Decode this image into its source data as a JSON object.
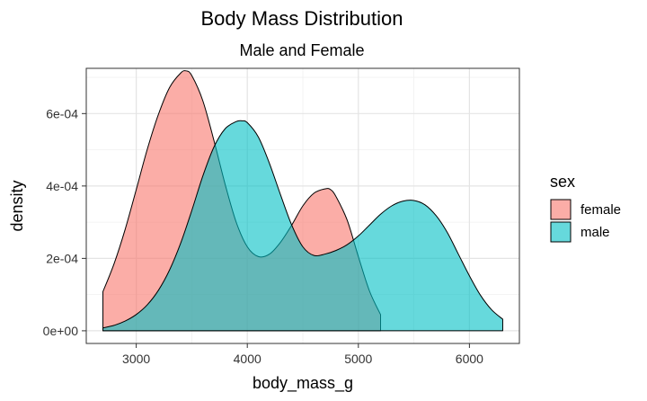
{
  "chart_data": {
    "type": "area",
    "title": "Body Mass Distribution",
    "subtitle": "Male and Female",
    "xlabel": "body_mass_g",
    "ylabel": "density",
    "xlim": [
      2550,
      6450
    ],
    "ylim": [
      -3.5e-05,
      0.000725
    ],
    "x_ticks": [
      3000,
      4000,
      5000,
      6000
    ],
    "x_tick_labels": [
      "3000",
      "4000",
      "5000",
      "6000"
    ],
    "y_ticks": [
      0,
      0.0002,
      0.0004,
      0.0006
    ],
    "y_tick_labels": [
      "0e+00",
      "2e-04",
      "4e-04",
      "6e-04"
    ],
    "grid": true,
    "legend": {
      "title": "sex",
      "position": "right",
      "items": [
        {
          "label": "female",
          "color": "#F8766D"
        },
        {
          "label": "male",
          "color": "#00BFC4"
        }
      ]
    },
    "series": [
      {
        "name": "female",
        "color": "#F8766D",
        "x": [
          2700,
          2800,
          2900,
          3000,
          3100,
          3200,
          3300,
          3400,
          3450,
          3500,
          3600,
          3700,
          3800,
          3900,
          4000,
          4100,
          4200,
          4300,
          4400,
          4500,
          4600,
          4700,
          4750,
          4800,
          4900,
          5000,
          5100,
          5200
        ],
        "y": [
          0.000108,
          0.000185,
          0.00028,
          0.00039,
          0.000502,
          0.000598,
          0.000672,
          0.000712,
          0.000718,
          0.000705,
          0.000635,
          0.000525,
          0.000405,
          0.0003,
          0.000232,
          0.000205,
          0.000212,
          0.000245,
          0.000292,
          0.000345,
          0.00038,
          0.000392,
          0.00039,
          0.00037,
          0.000305,
          0.000205,
          0.00011,
          4.46e-05
        ]
      },
      {
        "name": "male",
        "color": "#00BFC4",
        "x": [
          2700,
          2800,
          2900,
          3000,
          3100,
          3200,
          3300,
          3400,
          3500,
          3600,
          3700,
          3800,
          3900,
          3950,
          4000,
          4100,
          4200,
          4300,
          4400,
          4500,
          4600,
          4700,
          4800,
          4900,
          5000,
          5100,
          5200,
          5300,
          5400,
          5500,
          5600,
          5700,
          5800,
          5900,
          6000,
          6100,
          6200,
          6300
        ],
        "y": [
          8e-06,
          1.5e-05,
          2.7e-05,
          4.5e-05,
          7.2e-05,
          0.000112,
          0.000168,
          0.000242,
          0.000332,
          0.000428,
          0.000508,
          0.000558,
          0.000578,
          0.00058,
          0.000575,
          0.000535,
          0.000462,
          0.000375,
          0.000292,
          0.000232,
          0.000208,
          0.000212,
          0.000222,
          0.000238,
          0.000262,
          0.000292,
          0.000322,
          0.000345,
          0.000358,
          0.00036,
          0.000348,
          0.000318,
          0.000272,
          0.000212,
          0.000152,
          9.8e-05,
          5.8e-05,
          3.2e-05
        ]
      }
    ]
  }
}
